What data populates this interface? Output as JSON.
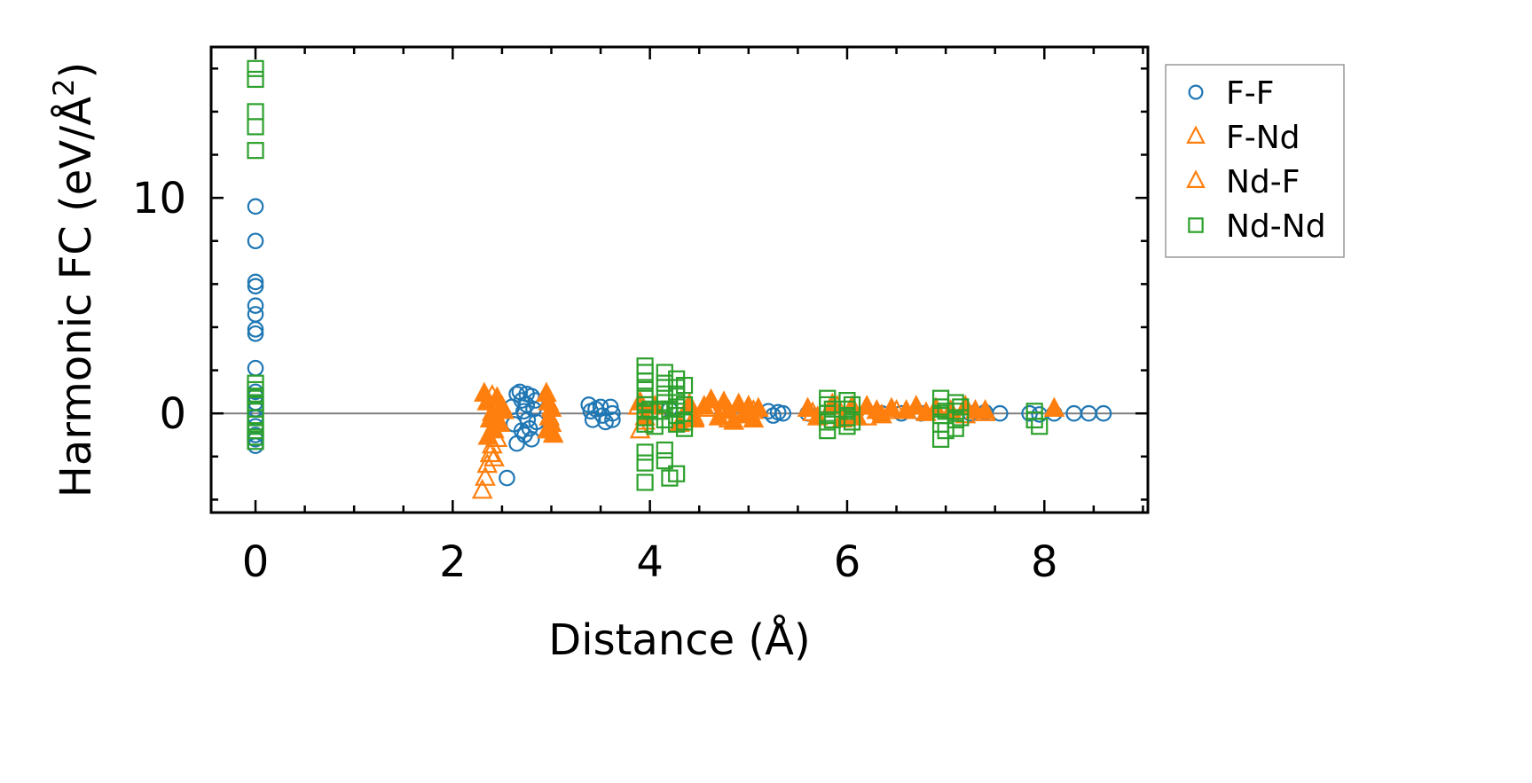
{
  "chart_data": {
    "type": "scatter",
    "xlabel": "Distance (Å)",
    "ylabel_main": "Harmonic FC (eV/Å",
    "ylabel_sup": "2",
    "ylabel_close": ")",
    "xlim": [
      -0.45,
      9.05
    ],
    "ylim": [
      -4.6,
      17.0
    ],
    "x_ticks": [
      {
        "value": 0,
        "label": "0"
      },
      {
        "value": 2,
        "label": "2"
      },
      {
        "value": 4,
        "label": "4"
      },
      {
        "value": 6,
        "label": "6"
      },
      {
        "value": 8,
        "label": "8"
      }
    ],
    "y_ticks": [
      {
        "value": 0,
        "label": "0"
      },
      {
        "value": 10,
        "label": "10"
      }
    ],
    "x_minor_step": 0.5,
    "y_minor_step": 2,
    "zero_line": true,
    "grid": false,
    "legend_position": "outside-right-top",
    "series": [
      {
        "name": "F-F",
        "marker": "circle",
        "color": "#1f77b4",
        "points": [
          [
            0,
            9.6
          ],
          [
            0,
            8.0
          ],
          [
            0,
            6.1
          ],
          [
            0,
            5.9
          ],
          [
            0,
            5.0
          ],
          [
            0,
            4.6
          ],
          [
            0,
            3.9
          ],
          [
            0,
            3.7
          ],
          [
            0,
            2.1
          ],
          [
            0,
            1.0
          ],
          [
            0,
            0.8
          ],
          [
            0,
            0.5
          ],
          [
            0,
            0.2
          ],
          [
            0,
            -0.2
          ],
          [
            0,
            -0.6
          ],
          [
            0,
            -1.0
          ],
          [
            0,
            -1.2
          ],
          [
            0,
            -1.5
          ],
          [
            2.55,
            -3.0
          ],
          [
            2.6,
            0.3
          ],
          [
            2.62,
            -0.5
          ],
          [
            2.65,
            0.9
          ],
          [
            2.65,
            -1.4
          ],
          [
            2.68,
            1.0
          ],
          [
            2.7,
            0.6
          ],
          [
            2.7,
            -0.8
          ],
          [
            2.72,
            0.1
          ],
          [
            2.73,
            -1.0
          ],
          [
            2.75,
            0.9
          ],
          [
            2.75,
            0.4
          ],
          [
            2.76,
            -0.3
          ],
          [
            2.78,
            -0.7
          ],
          [
            2.8,
            0.8
          ],
          [
            2.8,
            -1.2
          ],
          [
            2.82,
            0.2
          ],
          [
            2.84,
            0.6
          ],
          [
            2.85,
            -0.4
          ],
          [
            3.38,
            0.4
          ],
          [
            3.4,
            0.1
          ],
          [
            3.42,
            -0.3
          ],
          [
            3.45,
            0.2
          ],
          [
            3.5,
            0.3
          ],
          [
            3.52,
            -0.1
          ],
          [
            3.55,
            -0.4
          ],
          [
            3.6,
            0.3
          ],
          [
            3.62,
            0.0
          ],
          [
            3.62,
            -0.3
          ],
          [
            4.2,
            0.2
          ],
          [
            4.35,
            -0.2
          ],
          [
            5.2,
            0.1
          ],
          [
            5.25,
            -0.1
          ],
          [
            5.3,
            0.05
          ],
          [
            5.35,
            0.0
          ],
          [
            5.6,
            0.0
          ],
          [
            6.35,
            0.0
          ],
          [
            6.55,
            0.0
          ],
          [
            6.75,
            0.0
          ],
          [
            7.25,
            0.0
          ],
          [
            7.4,
            0.05
          ],
          [
            7.55,
            0.0
          ],
          [
            7.85,
            0.0
          ],
          [
            7.95,
            -0.05
          ],
          [
            8.1,
            0.0
          ],
          [
            8.3,
            0.0
          ],
          [
            8.45,
            0.0
          ],
          [
            8.6,
            0.0
          ]
        ]
      },
      {
        "name": "F-Nd",
        "marker": "triangle-open",
        "color": "#ff7f0e",
        "points": [
          [
            2.3,
            -3.6
          ],
          [
            2.33,
            -3.0
          ],
          [
            2.35,
            -2.4
          ],
          [
            2.38,
            -1.9
          ],
          [
            2.4,
            -1.5
          ],
          [
            2.42,
            -2.1
          ],
          [
            2.45,
            -1.2
          ],
          [
            2.4,
            0.8
          ],
          [
            2.45,
            0.4
          ],
          [
            3.9,
            -0.8
          ],
          [
            3.95,
            -0.4
          ],
          [
            3.88,
            0.3
          ],
          [
            4.45,
            -0.2
          ],
          [
            4.6,
            0.2
          ],
          [
            4.8,
            -0.3
          ],
          [
            5.05,
            0.1
          ],
          [
            5.65,
            0.0
          ],
          [
            5.9,
            0.3
          ],
          [
            6.2,
            -0.2
          ],
          [
            6.5,
            0.1
          ],
          [
            6.9,
            0.2
          ],
          [
            7.2,
            -0.1
          ],
          [
            7.4,
            0.0
          ]
        ]
      },
      {
        "name": "Nd-F",
        "marker": "triangle-filled",
        "color": "#ff7f0e",
        "points": [
          [
            2.32,
            0.9
          ],
          [
            2.35,
            0.5
          ],
          [
            2.38,
            -0.3
          ],
          [
            2.4,
            0.0
          ],
          [
            2.42,
            -0.8
          ],
          [
            2.45,
            0.7
          ],
          [
            2.48,
            -0.5
          ],
          [
            2.5,
            0.3
          ],
          [
            2.36,
            -1.1
          ],
          [
            2.52,
            0.1
          ],
          [
            2.95,
            0.9
          ],
          [
            2.97,
            0.5
          ],
          [
            3.0,
            0.2
          ],
          [
            2.98,
            -0.2
          ],
          [
            3.0,
            -0.5
          ],
          [
            2.96,
            -0.8
          ],
          [
            3.02,
            -1.0
          ],
          [
            3.9,
            0.5
          ],
          [
            3.95,
            -0.2
          ],
          [
            4.05,
            0.3
          ],
          [
            4.3,
            -0.5
          ],
          [
            4.4,
            0.4
          ],
          [
            4.45,
            -0.3
          ],
          [
            4.55,
            0.3
          ],
          [
            4.62,
            0.6
          ],
          [
            4.7,
            -0.2
          ],
          [
            4.75,
            0.5
          ],
          [
            4.8,
            0.1
          ],
          [
            4.85,
            -0.4
          ],
          [
            4.9,
            0.4
          ],
          [
            4.95,
            -0.1
          ],
          [
            5.0,
            0.3
          ],
          [
            5.05,
            -0.3
          ],
          [
            5.1,
            0.2
          ],
          [
            5.6,
            0.2
          ],
          [
            5.7,
            -0.2
          ],
          [
            5.85,
            0.4
          ],
          [
            5.95,
            -0.3
          ],
          [
            6.05,
            0.3
          ],
          [
            6.1,
            -0.2
          ],
          [
            6.2,
            0.3
          ],
          [
            6.3,
            0.1
          ],
          [
            6.35,
            -0.1
          ],
          [
            6.45,
            0.2
          ],
          [
            6.6,
            0.1
          ],
          [
            6.7,
            0.3
          ],
          [
            6.8,
            0.0
          ],
          [
            6.9,
            0.2
          ],
          [
            7.05,
            0.1
          ],
          [
            7.2,
            0.3
          ],
          [
            7.3,
            0.1
          ],
          [
            7.4,
            0.1
          ],
          [
            8.1,
            0.2
          ]
        ]
      },
      {
        "name": "Nd-Nd",
        "marker": "square",
        "color": "#2ca02c",
        "points": [
          [
            0,
            16.0
          ],
          [
            0,
            15.5
          ],
          [
            0,
            14.0
          ],
          [
            0,
            13.3
          ],
          [
            0,
            12.2
          ],
          [
            0,
            1.4
          ],
          [
            0,
            1.1
          ],
          [
            0,
            0.8
          ],
          [
            0,
            0.5
          ],
          [
            0,
            0.2
          ],
          [
            0,
            -0.2
          ],
          [
            0,
            -0.5
          ],
          [
            0,
            -0.8
          ],
          [
            0,
            -1.1
          ],
          [
            0,
            -1.3
          ],
          [
            3.95,
            2.2
          ],
          [
            3.95,
            1.9
          ],
          [
            3.95,
            1.5
          ],
          [
            3.95,
            1.1
          ],
          [
            3.95,
            0.7
          ],
          [
            3.95,
            0.4
          ],
          [
            3.95,
            0.1
          ],
          [
            3.95,
            -0.2
          ],
          [
            3.95,
            -0.5
          ],
          [
            3.95,
            -1.8
          ],
          [
            3.95,
            -2.3
          ],
          [
            3.95,
            -3.2
          ],
          [
            4.15,
            1.9
          ],
          [
            4.15,
            1.4
          ],
          [
            4.15,
            0.9
          ],
          [
            4.15,
            0.5
          ],
          [
            4.15,
            -0.3
          ],
          [
            4.15,
            -1.7
          ],
          [
            4.15,
            -2.2
          ],
          [
            4.2,
            0.2
          ],
          [
            4.2,
            -3.0
          ],
          [
            4.27,
            1.6
          ],
          [
            4.27,
            1.2
          ],
          [
            4.27,
            0.8
          ],
          [
            4.27,
            0.3
          ],
          [
            4.27,
            -0.1
          ],
          [
            4.27,
            -0.5
          ],
          [
            4.27,
            -2.8
          ],
          [
            4.35,
            1.3
          ],
          [
            4.35,
            0.4
          ],
          [
            4.35,
            -0.4
          ],
          [
            4.35,
            -0.7
          ],
          [
            4.0,
            0.2
          ],
          [
            4.05,
            -0.6
          ],
          [
            4.1,
            0.1
          ],
          [
            5.8,
            0.7
          ],
          [
            5.8,
            0.4
          ],
          [
            5.8,
            0.0
          ],
          [
            5.8,
            -0.4
          ],
          [
            5.8,
            -0.8
          ],
          [
            5.85,
            0.2
          ],
          [
            5.85,
            -0.3
          ],
          [
            6.0,
            0.6
          ],
          [
            6.0,
            0.2
          ],
          [
            6.0,
            -0.2
          ],
          [
            6.0,
            -0.6
          ],
          [
            6.05,
            0.4
          ],
          [
            6.05,
            -0.4
          ],
          [
            6.95,
            0.7
          ],
          [
            6.95,
            0.3
          ],
          [
            6.95,
            -0.1
          ],
          [
            6.95,
            -0.5
          ],
          [
            6.95,
            -1.2
          ],
          [
            7.0,
            0.1
          ],
          [
            7.0,
            -0.8
          ],
          [
            7.1,
            0.5
          ],
          [
            7.1,
            0.1
          ],
          [
            7.1,
            -0.3
          ],
          [
            7.1,
            -0.7
          ],
          [
            7.15,
            0.3
          ],
          [
            7.15,
            -0.2
          ],
          [
            7.9,
            0.1
          ],
          [
            7.9,
            -0.3
          ],
          [
            7.95,
            -0.6
          ]
        ]
      }
    ]
  }
}
